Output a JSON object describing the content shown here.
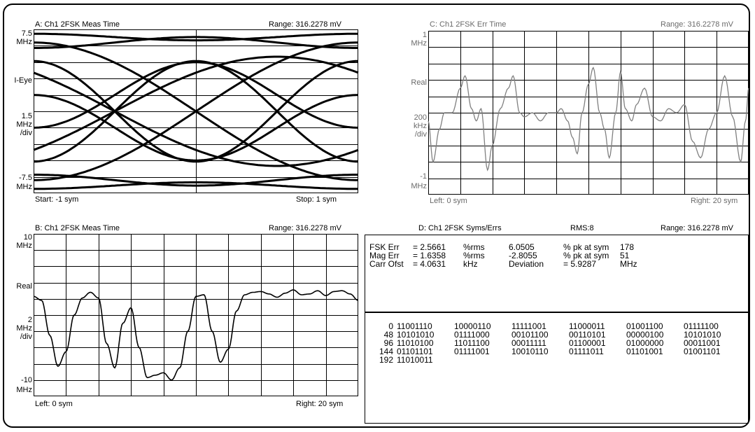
{
  "panels": {
    "a": {
      "title": "A: Ch1 2FSK Meas Time",
      "range": "Range: 316.2278 mV",
      "y_top": "7.5",
      "y_top_unit": "MHz",
      "y_mid": "I-Eye",
      "y_scale": "1.5",
      "y_scale_unit": "MHz",
      "y_scale_div": "/div",
      "y_bot": "-7.5",
      "y_bot_unit": "MHz",
      "x_left": "Start: -1  sym",
      "x_right": "Stop: 1  sym"
    },
    "b": {
      "title": "B: Ch1 2FSK Meas Time",
      "range": "Range: 316.2278 mV",
      "y_top": "10",
      "y_top_unit": "MHz",
      "y_mid": "Real",
      "y_scale": "2",
      "y_scale_unit": "MHz",
      "y_scale_div": "/div",
      "y_bot": "-10",
      "y_bot_unit": "MHz",
      "x_left": "Left: 0  sym",
      "x_right": "Right: 20  sym"
    },
    "c": {
      "title": "C: Ch1 2FSK Err Time",
      "range": "Range: 316.2278 mV",
      "y_top": "1",
      "y_top_unit": "MHz",
      "y_mid": "Real",
      "y_scale": "200",
      "y_scale_unit": "kHz",
      "y_scale_div": "/div",
      "y_bot": "-1",
      "y_bot_unit": "MHz",
      "x_left": "Left: 0  sym",
      "x_right": "Right: 20  sym"
    },
    "d": {
      "title": "D: Ch1 2FSK Syms/Errs",
      "rms": "RMS:8",
      "range": "Range: 316.2278 mV",
      "stats": [
        {
          "label": "FSK Err",
          "value": "= 2.5661",
          "unit": "%rms",
          "v2": "6.0505",
          "u2": "% pk  at  sym",
          "v3": "178"
        },
        {
          "label": "Mag Err",
          "value": "= 1.6358",
          "unit": "%rms",
          "v2": "-2.8055",
          "u2": "% pk  at  sym",
          "v3": "51"
        },
        {
          "label": "Carr  Ofst",
          "value": "= 4.0631",
          "unit": "kHz",
          "v2": "Deviation",
          "u2": "= 5.9287",
          "v3": "MHz"
        }
      ],
      "symbols": [
        {
          "index": "0",
          "bits": [
            "11001110",
            "10000110",
            "11111001",
            "11000011",
            "01001100",
            "01111100"
          ]
        },
        {
          "index": "48",
          "bits": [
            "10101010",
            "01111000",
            "00101100",
            "00110101",
            "00000100",
            "10101010"
          ]
        },
        {
          "index": "96",
          "bits": [
            "11010100",
            "11011100",
            "00011111",
            "01100001",
            "01000000",
            "00011001"
          ]
        },
        {
          "index": "144",
          "bits": [
            "01101101",
            "01111001",
            "10010110",
            "01111011",
            "01101001",
            "01001101"
          ]
        },
        {
          "index": "192",
          "bits": [
            "11010011"
          ]
        }
      ]
    }
  },
  "colors": {
    "trace_a_b": "#000000",
    "trace_c": "#808080",
    "grid": "#000000",
    "inactive_text": "#6a6a6a"
  }
}
